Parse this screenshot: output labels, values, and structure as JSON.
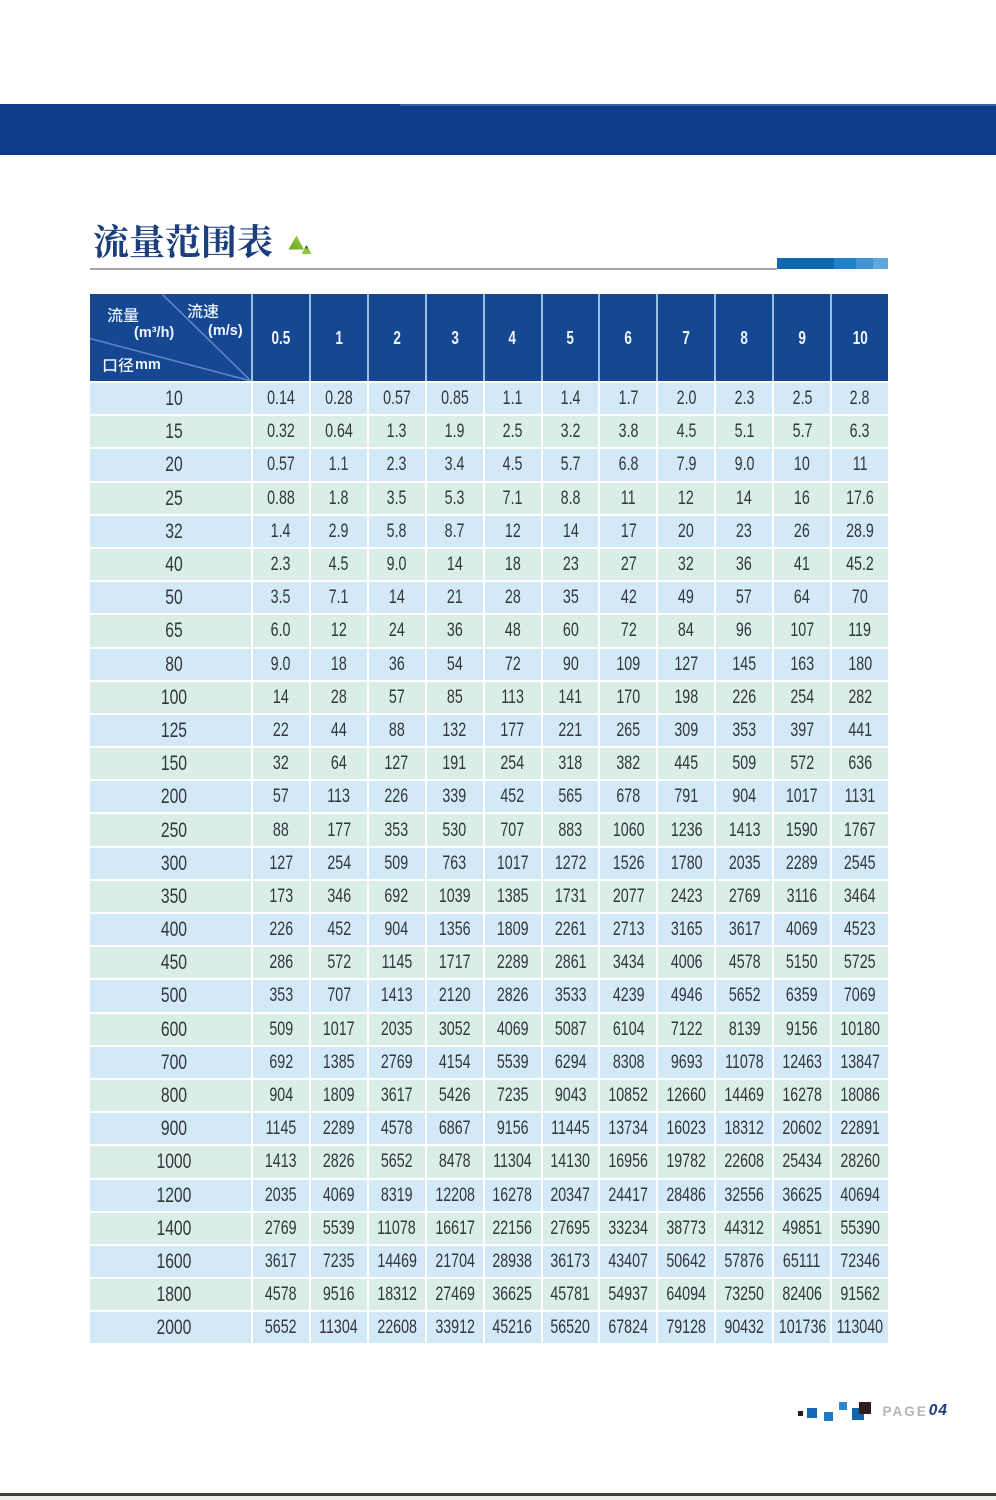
{
  "page": {
    "title": "流量范围表",
    "footer": {
      "page_label": "PAGE",
      "page_number": "04"
    }
  },
  "colors": {
    "band_blue": "#0d3c8c",
    "header_blue": "#164792",
    "row_blue": "#d4e9f8",
    "row_green": "#daede6",
    "title_navy": "#1c3e7c",
    "accent_green": "#8dc63f",
    "deco_bar_blues": [
      "#0f68b2",
      "#2081cb",
      "#3f93d7",
      "#5ea8e0"
    ]
  },
  "table": {
    "corner": {
      "flow_label": "流量",
      "flow_unit": "(m³/h)",
      "velocity_label": "流速",
      "velocity_unit": "(m/s)",
      "diameter_label": "口径",
      "diameter_unit": "mm"
    },
    "velocity_columns": [
      "0.5",
      "1",
      "2",
      "3",
      "4",
      "5",
      "6",
      "7",
      "8",
      "9",
      "10"
    ],
    "rows": [
      {
        "dn": "10",
        "values": [
          "0.14",
          "0.28",
          "0.57",
          "0.85",
          "1.1",
          "1.4",
          "1.7",
          "2.0",
          "2.3",
          "2.5",
          "2.8"
        ]
      },
      {
        "dn": "15",
        "values": [
          "0.32",
          "0.64",
          "1.3",
          "1.9",
          "2.5",
          "3.2",
          "3.8",
          "4.5",
          "5.1",
          "5.7",
          "6.3"
        ]
      },
      {
        "dn": "20",
        "values": [
          "0.57",
          "1.1",
          "2.3",
          "3.4",
          "4.5",
          "5.7",
          "6.8",
          "7.9",
          "9.0",
          "10",
          "11"
        ]
      },
      {
        "dn": "25",
        "values": [
          "0.88",
          "1.8",
          "3.5",
          "5.3",
          "7.1",
          "8.8",
          "11",
          "12",
          "14",
          "16",
          "17.6"
        ]
      },
      {
        "dn": "32",
        "values": [
          "1.4",
          "2.9",
          "5.8",
          "8.7",
          "12",
          "14",
          "17",
          "20",
          "23",
          "26",
          "28.9"
        ]
      },
      {
        "dn": "40",
        "values": [
          "2.3",
          "4.5",
          "9.0",
          "14",
          "18",
          "23",
          "27",
          "32",
          "36",
          "41",
          "45.2"
        ]
      },
      {
        "dn": "50",
        "values": [
          "3.5",
          "7.1",
          "14",
          "21",
          "28",
          "35",
          "42",
          "49",
          "57",
          "64",
          "70"
        ]
      },
      {
        "dn": "65",
        "values": [
          "6.0",
          "12",
          "24",
          "36",
          "48",
          "60",
          "72",
          "84",
          "96",
          "107",
          "119"
        ]
      },
      {
        "dn": "80",
        "values": [
          "9.0",
          "18",
          "36",
          "54",
          "72",
          "90",
          "109",
          "127",
          "145",
          "163",
          "180"
        ]
      },
      {
        "dn": "100",
        "values": [
          "14",
          "28",
          "57",
          "85",
          "113",
          "141",
          "170",
          "198",
          "226",
          "254",
          "282"
        ]
      },
      {
        "dn": "125",
        "values": [
          "22",
          "44",
          "88",
          "132",
          "177",
          "221",
          "265",
          "309",
          "353",
          "397",
          "441"
        ]
      },
      {
        "dn": "150",
        "values": [
          "32",
          "64",
          "127",
          "191",
          "254",
          "318",
          "382",
          "445",
          "509",
          "572",
          "636"
        ]
      },
      {
        "dn": "200",
        "values": [
          "57",
          "113",
          "226",
          "339",
          "452",
          "565",
          "678",
          "791",
          "904",
          "1017",
          "1131"
        ]
      },
      {
        "dn": "250",
        "values": [
          "88",
          "177",
          "353",
          "530",
          "707",
          "883",
          "1060",
          "1236",
          "1413",
          "1590",
          "1767"
        ]
      },
      {
        "dn": "300",
        "values": [
          "127",
          "254",
          "509",
          "763",
          "1017",
          "1272",
          "1526",
          "1780",
          "2035",
          "2289",
          "2545"
        ]
      },
      {
        "dn": "350",
        "values": [
          "173",
          "346",
          "692",
          "1039",
          "1385",
          "1731",
          "2077",
          "2423",
          "2769",
          "3116",
          "3464"
        ]
      },
      {
        "dn": "400",
        "values": [
          "226",
          "452",
          "904",
          "1356",
          "1809",
          "2261",
          "2713",
          "3165",
          "3617",
          "4069",
          "4523"
        ]
      },
      {
        "dn": "450",
        "values": [
          "286",
          "572",
          "1145",
          "1717",
          "2289",
          "2861",
          "3434",
          "4006",
          "4578",
          "5150",
          "5725"
        ]
      },
      {
        "dn": "500",
        "values": [
          "353",
          "707",
          "1413",
          "2120",
          "2826",
          "3533",
          "4239",
          "4946",
          "5652",
          "6359",
          "7069"
        ]
      },
      {
        "dn": "600",
        "values": [
          "509",
          "1017",
          "2035",
          "3052",
          "4069",
          "5087",
          "6104",
          "7122",
          "8139",
          "9156",
          "10180"
        ]
      },
      {
        "dn": "700",
        "values": [
          "692",
          "1385",
          "2769",
          "4154",
          "5539",
          "6294",
          "8308",
          "9693",
          "11078",
          "12463",
          "13847"
        ]
      },
      {
        "dn": "800",
        "values": [
          "904",
          "1809",
          "3617",
          "5426",
          "7235",
          "9043",
          "10852",
          "12660",
          "14469",
          "16278",
          "18086"
        ]
      },
      {
        "dn": "900",
        "values": [
          "1145",
          "2289",
          "4578",
          "6867",
          "9156",
          "11445",
          "13734",
          "16023",
          "18312",
          "20602",
          "22891"
        ]
      },
      {
        "dn": "1000",
        "values": [
          "1413",
          "2826",
          "5652",
          "8478",
          "11304",
          "14130",
          "16956",
          "19782",
          "22608",
          "25434",
          "28260"
        ]
      },
      {
        "dn": "1200",
        "values": [
          "2035",
          "4069",
          "8319",
          "12208",
          "16278",
          "20347",
          "24417",
          "28486",
          "32556",
          "36625",
          "40694"
        ]
      },
      {
        "dn": "1400",
        "values": [
          "2769",
          "5539",
          "11078",
          "16617",
          "22156",
          "27695",
          "33234",
          "38773",
          "44312",
          "49851",
          "55390"
        ]
      },
      {
        "dn": "1600",
        "values": [
          "3617",
          "7235",
          "14469",
          "21704",
          "28938",
          "36173",
          "43407",
          "50642",
          "57876",
          "65111",
          "72346"
        ]
      },
      {
        "dn": "1800",
        "values": [
          "4578",
          "9516",
          "18312",
          "27469",
          "36625",
          "45781",
          "54937",
          "64094",
          "73250",
          "82406",
          "91562"
        ]
      },
      {
        "dn": "2000",
        "values": [
          "5652",
          "11304",
          "22608",
          "33912",
          "45216",
          "56520",
          "67824",
          "79128",
          "90432",
          "101736",
          "113040"
        ]
      }
    ]
  }
}
